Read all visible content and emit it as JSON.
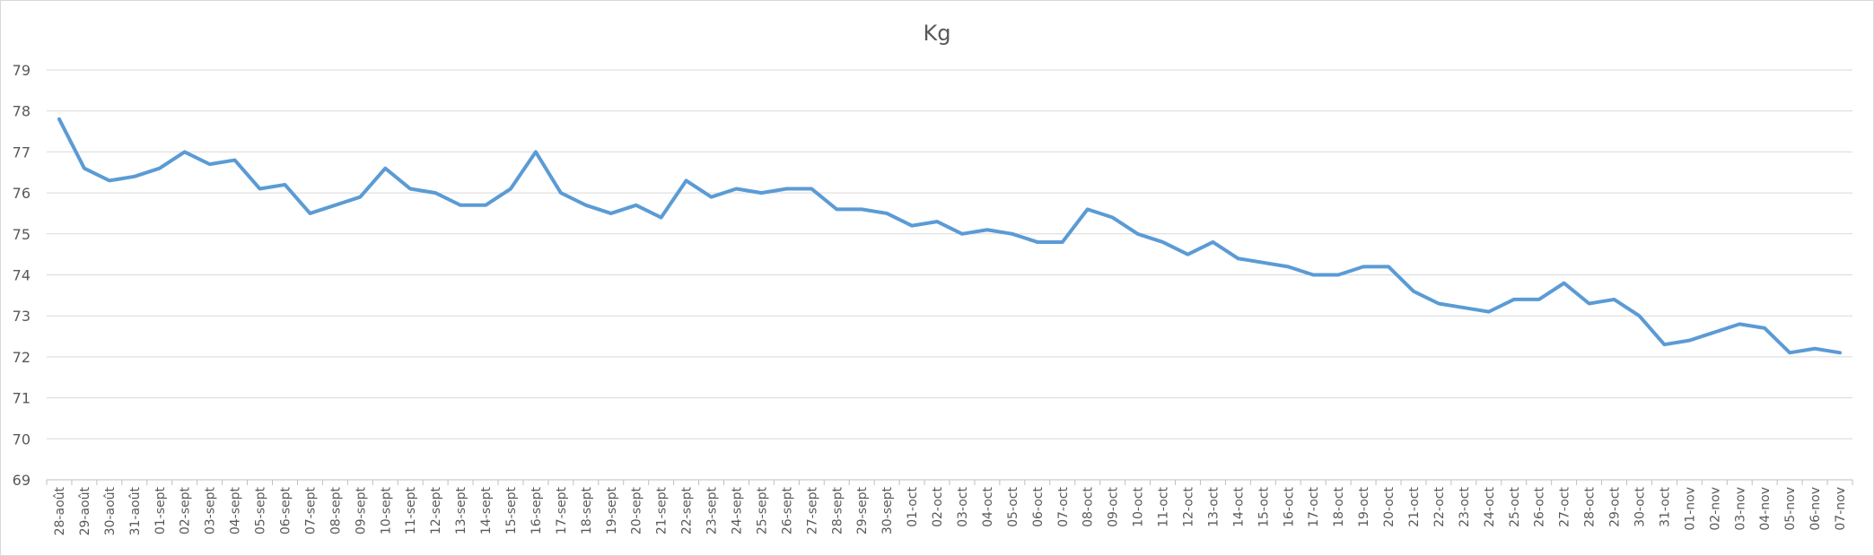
{
  "chart_data": {
    "type": "line",
    "title": "Kg",
    "ylim": [
      69,
      79
    ],
    "yticks": [
      "69",
      "70",
      "71",
      "72",
      "73",
      "74",
      "75",
      "76",
      "77",
      "78",
      "79"
    ],
    "grid": true,
    "legend": "none",
    "series": [
      {
        "color": "#5b9bd5",
        "points": [
          {
            "x": "28-août",
            "y": 77.8
          },
          {
            "x": "29-août",
            "y": 76.6
          },
          {
            "x": "30-août",
            "y": 76.3
          },
          {
            "x": "31-août",
            "y": 76.4
          },
          {
            "x": "01-sept",
            "y": 76.6
          },
          {
            "x": "02-sept",
            "y": 77.0
          },
          {
            "x": "03-sept",
            "y": 76.7
          },
          {
            "x": "04-sept",
            "y": 76.8
          },
          {
            "x": "05-sept",
            "y": 76.1
          },
          {
            "x": "06-sept",
            "y": 76.2
          },
          {
            "x": "07-sept",
            "y": 75.5
          },
          {
            "x": "08-sept",
            "y": 75.7
          },
          {
            "x": "09-sept",
            "y": 75.9
          },
          {
            "x": "10-sept",
            "y": 76.6
          },
          {
            "x": "11-sept",
            "y": 76.1
          },
          {
            "x": "12-sept",
            "y": 76.0
          },
          {
            "x": "13-sept",
            "y": 75.7
          },
          {
            "x": "14-sept",
            "y": 75.7
          },
          {
            "x": "15-sept",
            "y": 76.1
          },
          {
            "x": "16-sept",
            "y": 77.0
          },
          {
            "x": "17-sept",
            "y": 76.0
          },
          {
            "x": "18-sept",
            "y": 75.7
          },
          {
            "x": "19-sept",
            "y": 75.5
          },
          {
            "x": "20-sept",
            "y": 75.7
          },
          {
            "x": "21-sept",
            "y": 75.4
          },
          {
            "x": "22-sept",
            "y": 76.3
          },
          {
            "x": "23-sept",
            "y": 75.9
          },
          {
            "x": "24-sept",
            "y": 76.1
          },
          {
            "x": "25-sept",
            "y": 76.0
          },
          {
            "x": "26-sept",
            "y": 76.1
          },
          {
            "x": "27-sept",
            "y": 76.1
          },
          {
            "x": "28-sept",
            "y": 75.6
          },
          {
            "x": "29-sept",
            "y": 75.6
          },
          {
            "x": "30-sept",
            "y": 75.5
          },
          {
            "x": "01-oct",
            "y": 75.2
          },
          {
            "x": "02-oct",
            "y": 75.3
          },
          {
            "x": "03-oct",
            "y": 75.0
          },
          {
            "x": "04-oct",
            "y": 75.1
          },
          {
            "x": "05-oct",
            "y": 75.0
          },
          {
            "x": "06-oct",
            "y": 74.8
          },
          {
            "x": "07-oct",
            "y": 74.8
          },
          {
            "x": "08-oct",
            "y": 75.6
          },
          {
            "x": "09-oct",
            "y": 75.4
          },
          {
            "x": "10-oct",
            "y": 75.0
          },
          {
            "x": "11-oct",
            "y": 74.8
          },
          {
            "x": "12-oct",
            "y": 74.5
          },
          {
            "x": "13-oct",
            "y": 74.8
          },
          {
            "x": "14-oct",
            "y": 74.4
          },
          {
            "x": "15-oct",
            "y": 74.3
          },
          {
            "x": "16-oct",
            "y": 74.2
          },
          {
            "x": "17-oct",
            "y": 74.0
          },
          {
            "x": "18-oct",
            "y": 74.0
          },
          {
            "x": "19-oct",
            "y": 74.2
          },
          {
            "x": "20-oct",
            "y": 74.2
          },
          {
            "x": "21-oct",
            "y": 73.6
          },
          {
            "x": "22-oct",
            "y": 73.3
          },
          {
            "x": "23-oct",
            "y": 73.2
          },
          {
            "x": "24-oct",
            "y": 73.1
          },
          {
            "x": "25-oct",
            "y": 73.4
          },
          {
            "x": "26-oct",
            "y": 73.4
          },
          {
            "x": "27-oct",
            "y": 73.8
          },
          {
            "x": "28-oct",
            "y": 73.3
          },
          {
            "x": "29-oct",
            "y": 73.4
          },
          {
            "x": "30-oct",
            "y": 73.0
          },
          {
            "x": "31-oct",
            "y": 72.3
          },
          {
            "x": "01-nov",
            "y": 72.4
          },
          {
            "x": "02-nov",
            "y": 72.6
          },
          {
            "x": "03-nov",
            "y": 72.8
          },
          {
            "x": "04-nov",
            "y": 72.7
          },
          {
            "x": "05-nov",
            "y": 72.1
          },
          {
            "x": "06-nov",
            "y": 72.2
          },
          {
            "x": "07-nov",
            "y": 72.1
          }
        ]
      }
    ]
  }
}
